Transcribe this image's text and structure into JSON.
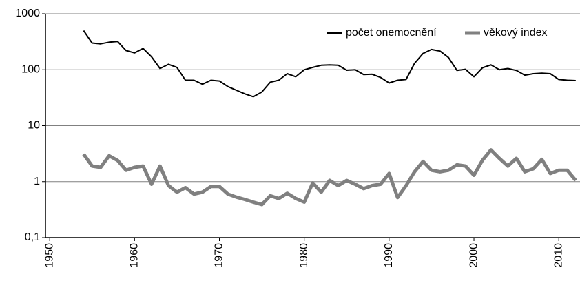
{
  "chart_data": {
    "type": "line",
    "log_scale": true,
    "grid": true,
    "legend_position": "upper right",
    "categories": [
      "1950",
      null,
      null,
      null,
      null,
      null,
      null,
      null,
      null,
      null,
      "1960",
      null,
      null,
      null,
      null,
      null,
      null,
      null,
      null,
      null,
      "1970",
      null,
      null,
      null,
      null,
      null,
      null,
      null,
      null,
      null,
      "1980",
      null,
      null,
      null,
      null,
      null,
      null,
      null,
      null,
      null,
      "1990",
      null,
      null,
      null,
      null,
      null,
      null,
      null,
      null,
      null,
      "2000",
      null,
      null,
      null,
      null,
      null,
      null,
      null,
      null,
      null,
      "2010",
      null,
      null
    ],
    "series": [
      {
        "name": "počet onemocnění",
        "color": "#000000",
        "values": [
          null,
          null,
          null,
          null,
          500,
          300,
          290,
          310,
          320,
          220,
          200,
          240,
          170,
          105,
          125,
          110,
          65,
          65,
          55,
          65,
          63,
          50,
          43,
          37,
          33,
          40,
          60,
          65,
          85,
          75,
          100,
          110,
          120,
          122,
          120,
          98,
          100,
          82,
          83,
          73,
          58,
          65,
          67,
          130,
          195,
          230,
          215,
          165,
          97,
          102,
          75,
          108,
          122,
          100,
          105,
          97,
          80,
          85,
          87,
          85,
          67,
          65,
          64
        ]
      },
      {
        "name": "věkový index",
        "color": "#808080",
        "values": [
          null,
          null,
          null,
          null,
          3.1,
          1.9,
          1.8,
          2.9,
          2.4,
          1.6,
          1.8,
          1.9,
          0.9,
          1.9,
          0.85,
          0.65,
          0.78,
          0.6,
          0.65,
          0.82,
          0.82,
          0.6,
          0.53,
          0.48,
          0.43,
          0.39,
          0.56,
          0.5,
          0.62,
          0.5,
          0.43,
          0.95,
          0.65,
          1.05,
          0.85,
          1.05,
          0.9,
          0.75,
          0.85,
          0.9,
          1.4,
          0.52,
          0.85,
          1.5,
          2.3,
          1.6,
          1.5,
          1.6,
          2.0,
          1.9,
          1.3,
          2.4,
          3.7,
          2.6,
          1.9,
          2.6,
          1.5,
          1.7,
          2.5,
          1.4,
          1.6,
          1.6,
          1.05
        ]
      }
    ],
    "ylim": [
      0.1,
      1000
    ],
    "yticks": [
      {
        "value": 0.1,
        "label": "0,1"
      },
      1,
      10,
      100,
      1000
    ]
  }
}
